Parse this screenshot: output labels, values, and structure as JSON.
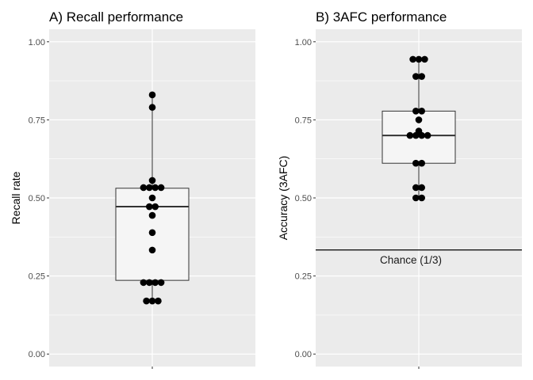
{
  "chart_data": [
    {
      "type": "box",
      "title": "A) Recall performance",
      "xlabel": "",
      "ylabel": "Recall rate",
      "ylim": [
        -0.04,
        1.04
      ],
      "yticks": [
        0.0,
        0.25,
        0.5,
        0.75,
        1.0
      ],
      "ytick_labels": [
        "0.00",
        "0.25",
        "0.50",
        "0.75",
        "1.00"
      ],
      "grid": true,
      "box": {
        "q1": 0.236,
        "median": 0.472,
        "q3": 0.531,
        "whisker_low": 0.17,
        "whisker_high": 0.83
      },
      "points": [
        {
          "y": 0.83,
          "n": 1
        },
        {
          "y": 0.79,
          "n": 1
        },
        {
          "y": 0.556,
          "n": 1
        },
        {
          "y": 0.533,
          "n": 4
        },
        {
          "y": 0.5,
          "n": 1
        },
        {
          "y": 0.472,
          "n": 2
        },
        {
          "y": 0.444,
          "n": 1
        },
        {
          "y": 0.389,
          "n": 1
        },
        {
          "y": 0.333,
          "n": 1
        },
        {
          "y": 0.229,
          "n": 4
        },
        {
          "y": 0.17,
          "n": 3
        }
      ],
      "colors": {
        "panel_bg": "#ebebeb",
        "grid": "#ffffff",
        "box_fill": "#f5f5f5",
        "box_line": "#333333",
        "point": "#000000"
      }
    },
    {
      "type": "box",
      "title": "B) 3AFC performance",
      "xlabel": "",
      "ylabel": "Accuracy (3AFC)",
      "ylim": [
        -0.04,
        1.04
      ],
      "yticks": [
        0.0,
        0.25,
        0.5,
        0.75,
        1.0
      ],
      "ytick_labels": [
        "0.00",
        "0.25",
        "0.50",
        "0.75",
        "1.00"
      ],
      "grid": true,
      "box": {
        "q1": 0.611,
        "median": 0.7,
        "q3": 0.778,
        "whisker_low": 0.5,
        "whisker_high": 0.944
      },
      "points": [
        {
          "y": 0.944,
          "n": 3
        },
        {
          "y": 0.889,
          "n": 2
        },
        {
          "y": 0.778,
          "n": 2
        },
        {
          "y": 0.75,
          "n": 1
        },
        {
          "y": 0.714,
          "n": 1
        },
        {
          "y": 0.7,
          "n": 4
        },
        {
          "y": 0.611,
          "n": 2
        },
        {
          "y": 0.533,
          "n": 2
        },
        {
          "y": 0.5,
          "n": 2
        }
      ],
      "reference_line": {
        "y": 0.3333,
        "label": "Chance (1/3)"
      },
      "colors": {
        "panel_bg": "#ebebeb",
        "grid": "#ffffff",
        "box_fill": "#f5f5f5",
        "box_line": "#333333",
        "point": "#000000",
        "reference": "#000000"
      }
    }
  ]
}
